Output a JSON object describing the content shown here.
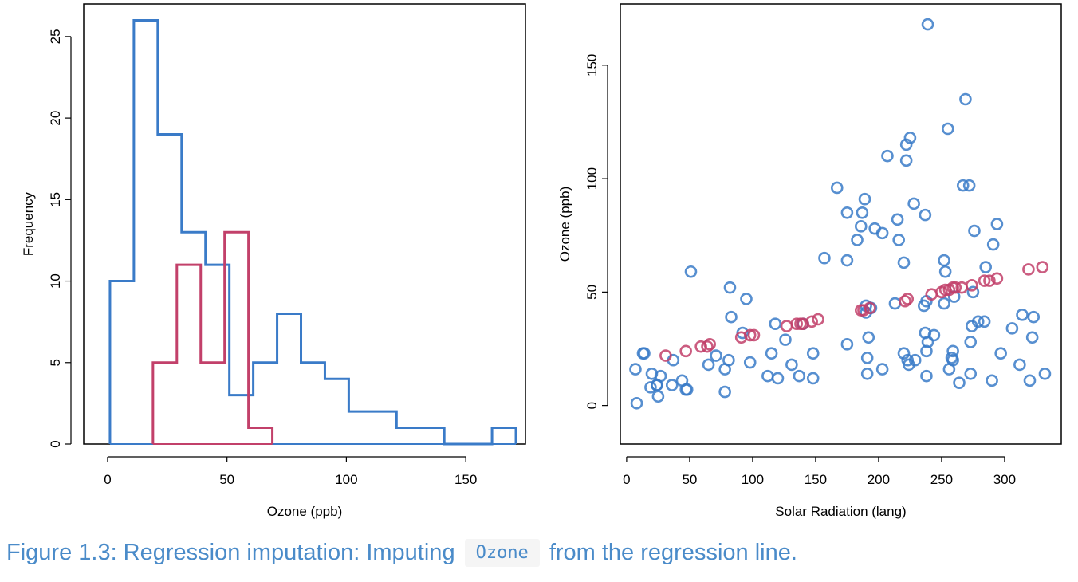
{
  "colors": {
    "observed": "#3a7bc8",
    "imputed": "#c2406a",
    "caption": "#4a8bc9"
  },
  "chart_data": [
    {
      "type": "histogram",
      "xlabel": "Ozone (ppb)",
      "ylabel": "Frequency",
      "xlim": [
        -10,
        175
      ],
      "ylim": [
        0,
        27
      ],
      "xticks": [
        "0",
        "50",
        "100",
        "150"
      ],
      "yticks": [
        "0",
        "5",
        "10",
        "15",
        "20",
        "25"
      ],
      "series": [
        {
          "color": "#3a7bc8",
          "bins": [
            {
              "x0": 1,
              "x1": 11,
              "count": 10
            },
            {
              "x0": 11,
              "x1": 21,
              "count": 26
            },
            {
              "x0": 21,
              "x1": 31,
              "count": 19
            },
            {
              "x0": 31,
              "x1": 41,
              "count": 13
            },
            {
              "x0": 41,
              "x1": 51,
              "count": 11
            },
            {
              "x0": 51,
              "x1": 61,
              "count": 3
            },
            {
              "x0": 61,
              "x1": 71,
              "count": 5
            },
            {
              "x0": 71,
              "x1": 81,
              "count": 8
            },
            {
              "x0": 81,
              "x1": 91,
              "count": 5
            },
            {
              "x0": 91,
              "x1": 101,
              "count": 4
            },
            {
              "x0": 101,
              "x1": 111,
              "count": 2
            },
            {
              "x0": 111,
              "x1": 121,
              "count": 2
            },
            {
              "x0": 121,
              "x1": 131,
              "count": 1
            },
            {
              "x0": 131,
              "x1": 141,
              "count": 1
            },
            {
              "x0": 141,
              "x1": 151,
              "count": 0
            },
            {
              "x0": 151,
              "x1": 161,
              "count": 0
            },
            {
              "x0": 161,
              "x1": 171,
              "count": 1
            }
          ]
        },
        {
          "color": "#c2406a",
          "bins": [
            {
              "x0": 19,
              "x1": 29,
              "count": 5
            },
            {
              "x0": 29,
              "x1": 39,
              "count": 11
            },
            {
              "x0": 39,
              "x1": 49,
              "count": 5
            },
            {
              "x0": 49,
              "x1": 59,
              "count": 13
            },
            {
              "x0": 59,
              "x1": 69,
              "count": 1
            }
          ]
        }
      ]
    },
    {
      "type": "scatter",
      "xlabel": "Solar Radiation (lang)",
      "ylabel": "Ozone (ppb)",
      "xlim": [
        -5,
        345
      ],
      "ylim": [
        -17,
        177
      ],
      "xticks": [
        "0",
        "50",
        "100",
        "150",
        "200",
        "250",
        "300"
      ],
      "yticks": [
        "0",
        "50",
        "100",
        "150"
      ],
      "series": [
        {
          "color": "#3a7bc8",
          "points": [
            [
              7,
              16
            ],
            [
              8,
              1
            ],
            [
              13,
              23
            ],
            [
              14,
              23
            ],
            [
              19,
              8
            ],
            [
              20,
              14
            ],
            [
              24,
              9
            ],
            [
              24,
              9
            ],
            [
              25,
              4
            ],
            [
              27,
              13
            ],
            [
              36,
              9
            ],
            [
              37,
              20
            ],
            [
              44,
              11
            ],
            [
              47,
              7
            ],
            [
              48,
              7
            ],
            [
              51,
              59
            ],
            [
              65,
              18
            ],
            [
              71,
              22
            ],
            [
              78,
              6
            ],
            [
              78,
              16
            ],
            [
              81,
              20
            ],
            [
              82,
              52
            ],
            [
              83,
              39
            ],
            [
              92,
              32
            ],
            [
              95,
              47
            ],
            [
              98,
              19
            ],
            [
              112,
              13
            ],
            [
              115,
              23
            ],
            [
              118,
              36
            ],
            [
              120,
              12
            ],
            [
              126,
              29
            ],
            [
              131,
              18
            ],
            [
              137,
              13
            ],
            [
              140,
              36
            ],
            [
              148,
              23
            ],
            [
              148,
              12
            ],
            [
              157,
              65
            ],
            [
              167,
              96
            ],
            [
              175,
              64
            ],
            [
              175,
              85
            ],
            [
              175,
              27
            ],
            [
              183,
              73
            ],
            [
              186,
              79
            ],
            [
              187,
              85
            ],
            [
              189,
              91
            ],
            [
              190,
              41
            ],
            [
              190,
              44
            ],
            [
              191,
              21
            ],
            [
              191,
              14
            ],
            [
              192,
              30
            ],
            [
              194,
              43
            ],
            [
              197,
              78
            ],
            [
              203,
              16
            ],
            [
              203,
              76
            ],
            [
              207,
              110
            ],
            [
              213,
              45
            ],
            [
              215,
              82
            ],
            [
              216,
              73
            ],
            [
              220,
              63
            ],
            [
              220,
              23
            ],
            [
              222,
              115
            ],
            [
              222,
              108
            ],
            [
              223,
              20
            ],
            [
              224,
              18
            ],
            [
              225,
              118
            ],
            [
              228,
              89
            ],
            [
              229,
              20
            ],
            [
              236,
              44
            ],
            [
              237,
              32
            ],
            [
              237,
              84
            ],
            [
              238,
              46
            ],
            [
              238,
              24
            ],
            [
              238,
              13
            ],
            [
              239,
              168
            ],
            [
              239,
              28
            ],
            [
              244,
              31
            ],
            [
              252,
              45
            ],
            [
              252,
              64
            ],
            [
              253,
              59
            ],
            [
              255,
              122
            ],
            [
              256,
              16
            ],
            [
              258,
              21
            ],
            [
              259,
              24
            ],
            [
              259,
              20
            ],
            [
              260,
              48
            ],
            [
              264,
              10
            ],
            [
              267,
              97
            ],
            [
              269,
              135
            ],
            [
              272,
              97
            ],
            [
              273,
              28
            ],
            [
              273,
              14
            ],
            [
              274,
              35
            ],
            [
              275,
              50
            ],
            [
              276,
              77
            ],
            [
              279,
              37
            ],
            [
              284,
              37
            ],
            [
              285,
              61
            ],
            [
              290,
              11
            ],
            [
              291,
              71
            ],
            [
              294,
              80
            ],
            [
              297,
              23
            ],
            [
              306,
              34
            ],
            [
              312,
              18
            ],
            [
              314,
              40
            ],
            [
              320,
              11
            ],
            [
              322,
              30
            ],
            [
              323,
              39
            ],
            [
              332,
              14
            ]
          ]
        },
        {
          "color": "#c2406a",
          "points": [
            [
              31,
              22
            ],
            [
              47,
              24
            ],
            [
              59,
              26
            ],
            [
              64,
              26
            ],
            [
              66,
              27
            ],
            [
              91,
              30
            ],
            [
              98,
              31
            ],
            [
              101,
              31
            ],
            [
              127,
              35
            ],
            [
              135,
              36
            ],
            [
              138,
              36
            ],
            [
              140,
              36
            ],
            [
              147,
              37
            ],
            [
              152,
              38
            ],
            [
              186,
              42
            ],
            [
              188,
              42
            ],
            [
              193,
              43
            ],
            [
              221,
              46
            ],
            [
              223,
              47
            ],
            [
              242,
              49
            ],
            [
              250,
              50
            ],
            [
              253,
              51
            ],
            [
              256,
              51
            ],
            [
              259,
              52
            ],
            [
              261,
              52
            ],
            [
              266,
              52
            ],
            [
              274,
              53
            ],
            [
              284,
              55
            ],
            [
              288,
              55
            ],
            [
              294,
              56
            ],
            [
              319,
              60
            ],
            [
              330,
              61
            ]
          ]
        }
      ]
    }
  ],
  "caption": {
    "prefix": "Figure 1.3: Regression imputation: Imputing",
    "code": "Ozone",
    "suffix": "from the regression line."
  }
}
